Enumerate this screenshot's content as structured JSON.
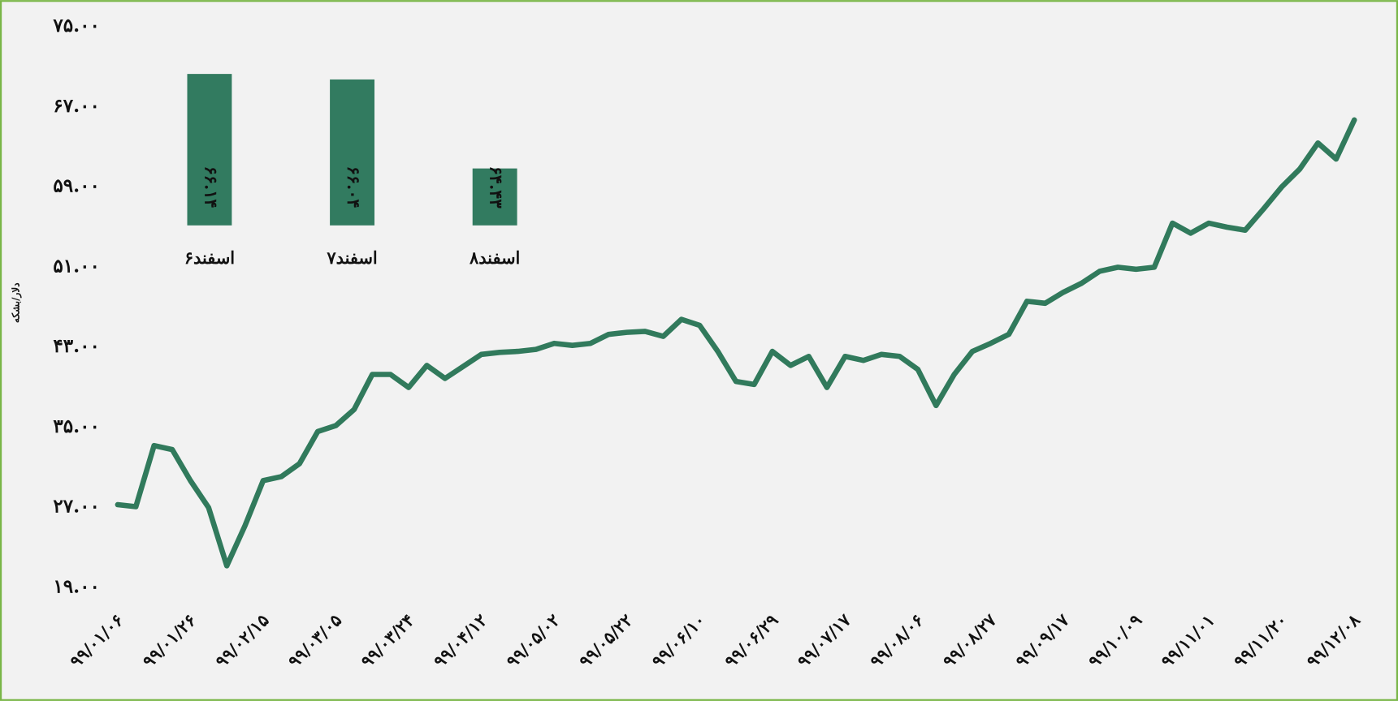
{
  "chart_data": [
    {
      "type": "line",
      "y_label": "دلار/بشکه",
      "categories": [
        "۹۹/۰۱/۰۶",
        null,
        null,
        null,
        "۹۹/۰۱/۲۶",
        null,
        null,
        null,
        "۹۹/۰۲/۱۵",
        null,
        null,
        null,
        "۹۹/۰۳/۰۵",
        null,
        null,
        null,
        "۹۹/۰۳/۲۴",
        null,
        null,
        null,
        "۹۹/۰۴/۱۲",
        null,
        null,
        null,
        "۹۹/۰۵/۰۲",
        null,
        null,
        null,
        "۹۹/۰۵/۲۲",
        null,
        null,
        null,
        "۹۹/۰۶/۱۰",
        null,
        null,
        null,
        "۹۹/۰۶/۲۹",
        null,
        null,
        null,
        "۹۹/۰۷/۱۷",
        null,
        null,
        null,
        "۹۹/۰۸/۰۶",
        null,
        null,
        null,
        "۹۹/۰۸/۲۷",
        null,
        null,
        null,
        "۹۹/۰۹/۱۷",
        null,
        null,
        null,
        "۹۹/۱۰/۰۹",
        null,
        null,
        null,
        "۹۹/۱۱/۰۱",
        null,
        null,
        null,
        "۹۹/۱۱/۲۰",
        null,
        null,
        null,
        "۹۹/۱۲/۰۸"
      ],
      "values": [
        27.3,
        27.1,
        33.2,
        32.8,
        29.7,
        27.0,
        21.2,
        25.2,
        29.7,
        30.1,
        31.4,
        34.6,
        35.2,
        36.8,
        40.3,
        40.3,
        39.0,
        41.2,
        39.9,
        41.1,
        42.3,
        42.5,
        42.6,
        42.8,
        43.4,
        43.2,
        43.4,
        44.3,
        44.5,
        44.6,
        44.1,
        45.8,
        45.2,
        42.6,
        39.6,
        39.3,
        42.6,
        41.2,
        42.1,
        39.0,
        42.1,
        41.7,
        42.3,
        42.1,
        40.8,
        37.2,
        40.3,
        42.6,
        43.4,
        44.3,
        47.6,
        47.4,
        48.5,
        49.4,
        50.6,
        51.0,
        50.8,
        51.0,
        55.4,
        54.4,
        55.4,
        55.0,
        54.7,
        56.8,
        59.0,
        60.8,
        63.4,
        61.8,
        65.7
      ],
      "color": "#317a5c",
      "ylim": [
        19,
        75
      ],
      "yticks": [
        {
          "value": 19,
          "label": "۱۹.۰۰"
        },
        {
          "value": 27,
          "label": "۲۷.۰۰"
        },
        {
          "value": 35,
          "label": "۳۵.۰۰"
        },
        {
          "value": 43,
          "label": "۴۳.۰۰"
        },
        {
          "value": 51,
          "label": "۵۱.۰۰"
        },
        {
          "value": 59,
          "label": "۵۹.۰۰"
        },
        {
          "value": 67,
          "label": "۶۷.۰۰"
        },
        {
          "value": 75,
          "label": "۷۵.۰۰"
        }
      ],
      "grid": false
    },
    {
      "type": "bar",
      "categories": [
        "۶اسفند",
        "۷اسفند",
        "۸اسفند"
      ],
      "values": [
        66.14,
        66.04,
        64.43
      ],
      "value_labels": [
        "۶۶.۱۴",
        "۶۶.۰۴",
        "۶۴.۴۳"
      ],
      "color": "#327b60",
      "ylim": [
        63.4,
        66.3
      ]
    }
  ]
}
